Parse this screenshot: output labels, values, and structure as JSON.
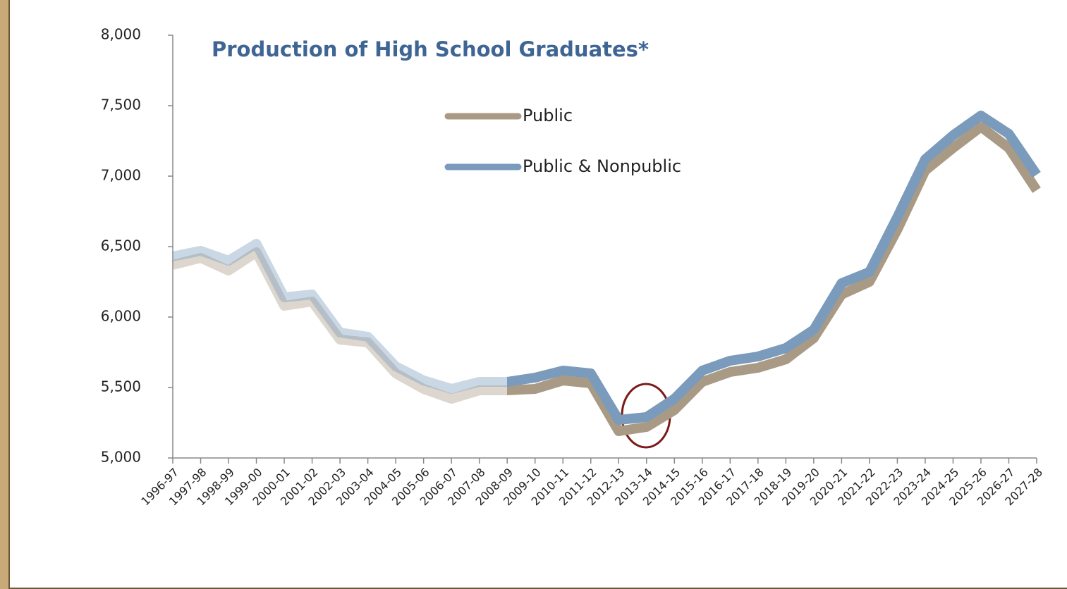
{
  "chart_data": {
    "type": "line",
    "title": "Production of High School Graduates*",
    "categories": [
      "1996-97",
      "1997-98",
      "1998-99",
      "1999-00",
      "2000-01",
      "2001-02",
      "2002-03",
      "2003-04",
      "2004-05",
      "2005-06",
      "2006-07",
      "2007-08",
      "2008-09",
      "2009-10",
      "2010-11",
      "2011-12",
      "2012-13",
      "2013-14",
      "2014-15",
      "2015-16",
      "2016-17",
      "2017-18",
      "2018-19",
      "2019-20",
      "2020-21",
      "2021-22",
      "2022-23",
      "2023-24",
      "2024-25",
      "2025-26",
      "2026-27",
      "2027-28"
    ],
    "series": [
      {
        "name": "Public",
        "color": "#a99a85",
        "values": [
          6370,
          6420,
          6330,
          6460,
          6080,
          6110,
          5840,
          5820,
          5600,
          5490,
          5420,
          5480,
          5480,
          5490,
          5550,
          5530,
          5190,
          5220,
          5340,
          5540,
          5610,
          5640,
          5700,
          5850,
          6160,
          6250,
          6620,
          7040,
          7200,
          7350,
          7200,
          6900
        ]
      },
      {
        "name": "Public & Nonpublic",
        "color": "#7a9bbb",
        "values": [
          6430,
          6470,
          6400,
          6520,
          6140,
          6160,
          5890,
          5860,
          5650,
          5550,
          5490,
          5540,
          5540,
          5570,
          5620,
          5600,
          5270,
          5290,
          5420,
          5620,
          5690,
          5720,
          5780,
          5910,
          6240,
          6320,
          6710,
          7120,
          7290,
          7430,
          7300,
          7010
        ]
      }
    ],
    "faded_through": 12,
    "ylim": [
      5000,
      8000
    ],
    "yticks": [
      {
        "value": 5000,
        "label": "5,000"
      },
      {
        "value": 5500,
        "label": "5,500"
      },
      {
        "value": 6000,
        "label": "6,000"
      },
      {
        "value": 6500,
        "label": "6,500"
      },
      {
        "value": 7000,
        "label": "7,000"
      },
      {
        "value": 7500,
        "label": "7,500"
      },
      {
        "value": 8000,
        "label": "8,000"
      }
    ]
  }
}
